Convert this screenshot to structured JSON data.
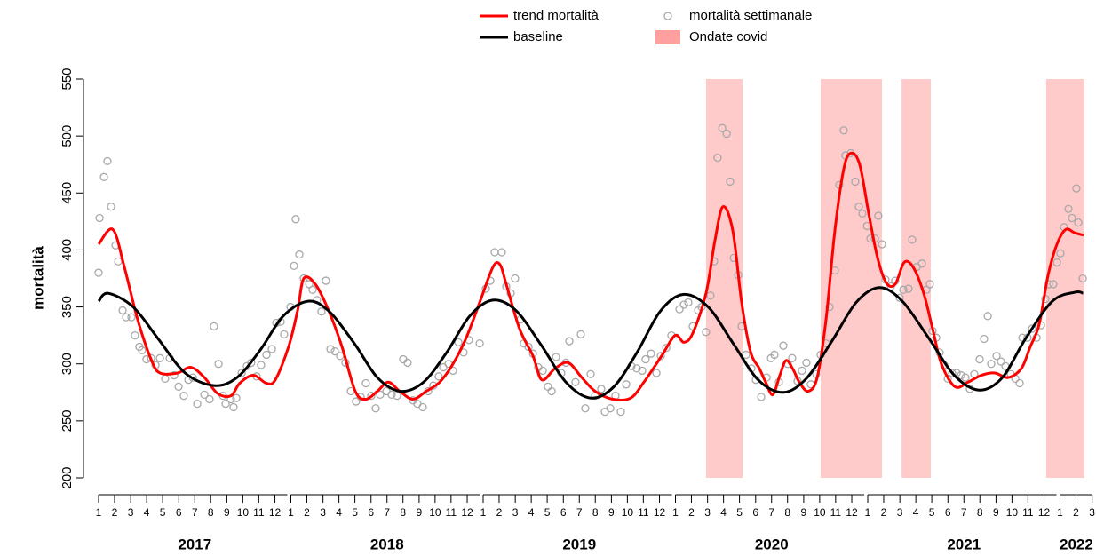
{
  "chart_data": {
    "type": "line",
    "y_label": "mortalità",
    "xlim": [
      2016.98,
      2022.17
    ],
    "ylim": [
      200,
      550
    ],
    "yticks": [
      200,
      250,
      300,
      350,
      400,
      450,
      500,
      550
    ],
    "xticks": [
      {
        "value": 2017.0,
        "label": "1"
      },
      {
        "value": 2017.083,
        "label": "2"
      },
      {
        "value": 2017.167,
        "label": "3"
      },
      {
        "value": 2017.25,
        "label": "4"
      },
      {
        "value": 2017.333,
        "label": "5"
      },
      {
        "value": 2017.417,
        "label": "6"
      },
      {
        "value": 2017.5,
        "label": "7"
      },
      {
        "value": 2017.583,
        "label": "8"
      },
      {
        "value": 2017.667,
        "label": "9"
      },
      {
        "value": 2017.75,
        "label": "10"
      },
      {
        "value": 2017.833,
        "label": "11"
      },
      {
        "value": 2017.917,
        "label": "12"
      },
      {
        "value": 2018.0,
        "label": "1"
      },
      {
        "value": 2018.083,
        "label": "2"
      },
      {
        "value": 2018.167,
        "label": "3"
      },
      {
        "value": 2018.25,
        "label": "4"
      },
      {
        "value": 2018.333,
        "label": "5"
      },
      {
        "value": 2018.417,
        "label": "6"
      },
      {
        "value": 2018.5,
        "label": "7"
      },
      {
        "value": 2018.583,
        "label": "8"
      },
      {
        "value": 2018.667,
        "label": "9"
      },
      {
        "value": 2018.75,
        "label": "10"
      },
      {
        "value": 2018.833,
        "label": "11"
      },
      {
        "value": 2018.917,
        "label": "12"
      },
      {
        "value": 2019.0,
        "label": "1"
      },
      {
        "value": 2019.083,
        "label": "2"
      },
      {
        "value": 2019.167,
        "label": "3"
      },
      {
        "value": 2019.25,
        "label": "4"
      },
      {
        "value": 2019.333,
        "label": "5"
      },
      {
        "value": 2019.417,
        "label": "6"
      },
      {
        "value": 2019.5,
        "label": "7"
      },
      {
        "value": 2019.583,
        "label": "8"
      },
      {
        "value": 2019.667,
        "label": "9"
      },
      {
        "value": 2019.75,
        "label": "10"
      },
      {
        "value": 2019.833,
        "label": "11"
      },
      {
        "value": 2019.917,
        "label": "12"
      },
      {
        "value": 2020.0,
        "label": "1"
      },
      {
        "value": 2020.083,
        "label": "2"
      },
      {
        "value": 2020.167,
        "label": "3"
      },
      {
        "value": 2020.25,
        "label": "4"
      },
      {
        "value": 2020.333,
        "label": "5"
      },
      {
        "value": 2020.417,
        "label": "6"
      },
      {
        "value": 2020.5,
        "label": "7"
      },
      {
        "value": 2020.583,
        "label": "8"
      },
      {
        "value": 2020.667,
        "label": "9"
      },
      {
        "value": 2020.75,
        "label": "10"
      },
      {
        "value": 2020.833,
        "label": "11"
      },
      {
        "value": 2020.917,
        "label": "12"
      },
      {
        "value": 2021.0,
        "label": "1"
      },
      {
        "value": 2021.083,
        "label": "2"
      },
      {
        "value": 2021.167,
        "label": "3"
      },
      {
        "value": 2021.25,
        "label": "4"
      },
      {
        "value": 2021.333,
        "label": "5"
      },
      {
        "value": 2021.417,
        "label": "6"
      },
      {
        "value": 2021.5,
        "label": "7"
      },
      {
        "value": 2021.583,
        "label": "8"
      },
      {
        "value": 2021.667,
        "label": "9"
      },
      {
        "value": 2021.75,
        "label": "10"
      },
      {
        "value": 2021.833,
        "label": "11"
      },
      {
        "value": 2021.917,
        "label": "12"
      },
      {
        "value": 2022.0,
        "label": "1"
      },
      {
        "value": 2022.083,
        "label": "2"
      },
      {
        "value": 2022.167,
        "label": "3"
      }
    ],
    "year_labels": [
      2017,
      2018,
      2019,
      2020,
      2021,
      2022
    ],
    "covid_waves": {
      "name": "Ondate covid",
      "color": "#ff9f9f",
      "ranges": [
        [
          2020.159,
          2020.349
        ],
        [
          2020.755,
          2021.074
        ],
        [
          2021.176,
          2021.328
        ],
        [
          2021.928,
          2022.127
        ]
      ]
    },
    "series": [
      {
        "name": "trend mortalità",
        "type": "line",
        "color": "#ff0000",
        "x": [
          2017.0,
          2017.074,
          2017.134,
          2017.203,
          2017.273,
          2017.319,
          2017.411,
          2017.48,
          2017.55,
          2017.619,
          2017.688,
          2017.734,
          2017.804,
          2017.873,
          2017.919,
          2017.988,
          2018.035,
          2018.067,
          2018.127,
          2018.196,
          2018.266,
          2018.335,
          2018.39,
          2018.45,
          2018.506,
          2018.566,
          2018.635,
          2018.704,
          2018.774,
          2018.843,
          2018.912,
          2018.982,
          2019.051,
          2019.088,
          2019.12,
          2019.189,
          2019.259,
          2019.305,
          2019.374,
          2019.443,
          2019.513,
          2019.582,
          2019.674,
          2019.767,
          2019.836,
          2019.928,
          2019.998,
          2020.044,
          2020.09,
          2020.159,
          2020.206,
          2020.247,
          2020.298,
          2020.344,
          2020.39,
          2020.436,
          2020.469,
          2020.506,
          2020.543,
          2020.575,
          2020.612,
          2020.644,
          2020.69,
          2020.737,
          2020.783,
          2020.829,
          2020.875,
          2020.912,
          2020.958,
          2021.005,
          2021.051,
          2021.097,
          2021.143,
          2021.189,
          2021.236,
          2021.291,
          2021.337,
          2021.383,
          2021.453,
          2021.522,
          2021.591,
          2021.661,
          2021.73,
          2021.799,
          2021.845,
          2021.892,
          2021.938,
          2021.984,
          2022.03,
          2022.076,
          2022.122
        ],
        "values": [
          405,
          418,
          385,
          339,
          304,
          292,
          292,
          297,
          288,
          274,
          272,
          283,
          290,
          283,
          286,
          315,
          347,
          375,
          370,
          347,
          315,
          276,
          269,
          276,
          284,
          276,
          269,
          276,
          284,
          300,
          323,
          354,
          385,
          387,
          370,
          331,
          307,
          286,
          296,
          301,
          288,
          276,
          269,
          270,
          284,
          307,
          325,
          319,
          327,
          362,
          409,
          438,
          417,
          354,
          311,
          296,
          284,
          273,
          290,
          303,
          295,
          284,
          276,
          288,
          339,
          417,
          471,
          485,
          475,
          432,
          393,
          371,
          370,
          389,
          385,
          362,
          331,
          300,
          280,
          284,
          290,
          292,
          288,
          296,
          315,
          335,
          378,
          405,
          418,
          415,
          413
        ]
      },
      {
        "name": "baseline",
        "type": "line",
        "color": "#000000",
        "x": [
          2017.0,
          2017.05,
          2017.18,
          2017.31,
          2017.45,
          2017.6,
          2017.72,
          2017.84,
          2017.96,
          2018.09,
          2018.2,
          2018.33,
          2018.45,
          2018.57,
          2018.69,
          2018.81,
          2018.93,
          2019.05,
          2019.17,
          2019.3,
          2019.43,
          2019.56,
          2019.68,
          2019.8,
          2019.92,
          2020.04,
          2020.17,
          2020.3,
          2020.43,
          2020.56,
          2020.68,
          2020.81,
          2020.94,
          2021.06,
          2021.18,
          2021.32,
          2021.45,
          2021.58,
          2021.7,
          2021.82,
          2021.96,
          2022.08,
          2022.12
        ],
        "values": [
          355,
          362,
          350,
          322,
          292,
          281,
          288,
          312,
          342,
          355,
          346,
          318,
          288,
          276,
          284,
          310,
          342,
          356,
          347,
          317,
          284,
          270,
          280,
          310,
          346,
          361,
          350,
          318,
          286,
          275,
          287,
          319,
          354,
          367,
          355,
          322,
          290,
          277,
          288,
          322,
          355,
          363,
          362
        ]
      },
      {
        "name": "mortalità settimanale",
        "type": "scatter",
        "color": "#a8a8a8",
        "x": [
          2017.0,
          2017.005,
          2017.028,
          2017.046,
          2017.065,
          2017.088,
          2017.102,
          2017.125,
          2017.143,
          2017.171,
          2017.189,
          2017.212,
          2017.226,
          2017.249,
          2017.273,
          2017.296,
          2017.319,
          2017.346,
          2017.37,
          2017.393,
          2017.416,
          2017.443,
          2017.467,
          2017.49,
          2017.513,
          2017.55,
          2017.577,
          2017.6,
          2017.624,
          2017.647,
          2017.661,
          2017.688,
          2017.702,
          2017.716,
          2017.744,
          2017.771,
          2017.794,
          2017.822,
          2017.845,
          2017.873,
          2017.901,
          2017.924,
          2017.947,
          2017.965,
          2017.998,
          2018.016,
          2018.025,
          2018.044,
          2018.067,
          2018.095,
          2018.113,
          2018.136,
          2018.159,
          2018.182,
          2018.206,
          2018.229,
          2018.256,
          2018.284,
          2018.312,
          2018.339,
          2018.363,
          2018.39,
          2018.418,
          2018.441,
          2018.464,
          2018.497,
          2018.524,
          2018.552,
          2018.584,
          2018.607,
          2018.635,
          2018.658,
          2018.686,
          2018.714,
          2018.741,
          2018.769,
          2018.792,
          2018.82,
          2018.843,
          2018.871,
          2018.898,
          2018.926,
          2018.982,
          2019.014,
          2019.037,
          2019.06,
          2019.097,
          2019.12,
          2019.143,
          2019.166,
          2019.194,
          2019.212,
          2019.236,
          2019.259,
          2019.286,
          2019.31,
          2019.337,
          2019.356,
          2019.379,
          2019.406,
          2019.43,
          2019.448,
          2019.48,
          2019.508,
          2019.531,
          2019.559,
          2019.582,
          2019.614,
          2019.633,
          2019.661,
          2019.688,
          2019.716,
          2019.744,
          2019.771,
          2019.799,
          2019.827,
          2019.845,
          2019.873,
          2019.901,
          2019.924,
          2019.952,
          2019.979,
          2020.021,
          2020.044,
          2020.067,
          2020.09,
          2020.118,
          2020.136,
          2020.159,
          2020.182,
          2020.201,
          2020.219,
          2020.243,
          2020.266,
          2020.284,
          2020.303,
          2020.326,
          2020.344,
          2020.367,
          2020.395,
          2020.418,
          2020.446,
          2020.474,
          2020.497,
          2020.515,
          2020.538,
          2020.561,
          2020.584,
          2020.607,
          2020.635,
          2020.658,
          2020.681,
          2020.704,
          2020.732,
          2020.755,
          2020.783,
          2020.801,
          2020.829,
          2020.852,
          2020.875,
          2020.884,
          2020.912,
          2020.935,
          2020.954,
          2020.972,
          2020.996,
          2021.014,
          2021.037,
          2021.055,
          2021.074,
          2021.092,
          2021.12,
          2021.143,
          2021.166,
          2021.185,
          2021.212,
          2021.231,
          2021.254,
          2021.282,
          2021.305,
          2021.323,
          2021.337,
          2021.356,
          2021.374,
          2021.397,
          2021.416,
          2021.439,
          2021.462,
          2021.485,
          2021.508,
          2021.531,
          2021.554,
          2021.582,
          2021.605,
          2021.624,
          2021.642,
          2021.67,
          2021.693,
          2021.716,
          2021.744,
          2021.767,
          2021.79,
          2021.804,
          2021.831,
          2021.855,
          2021.878,
          2021.901,
          2021.924,
          2021.942,
          2021.965,
          2021.984,
          2022.002,
          2022.021,
          2022.044,
          2022.062,
          2022.085,
          2022.095,
          2022.118
        ],
        "values": [
          380,
          428,
          464,
          478,
          438,
          404,
          390,
          347,
          341,
          341,
          325,
          315,
          312,
          304,
          305,
          299,
          305,
          287,
          305,
          290,
          280,
          272,
          286,
          288,
          265,
          273,
          269,
          333,
          300,
          272,
          265,
          269,
          262,
          270,
          292,
          298,
          301,
          289,
          299,
          308,
          313,
          336,
          337,
          326,
          350,
          386,
          427,
          396,
          375,
          370,
          365,
          356,
          346,
          373,
          313,
          311,
          307,
          301,
          276,
          267,
          271,
          283,
          272,
          261,
          273,
          276,
          273,
          272,
          304,
          301,
          268,
          265,
          262,
          276,
          281,
          289,
          297,
          300,
          294,
          319,
          310,
          321,
          318,
          366,
          373,
          398,
          398,
          368,
          362,
          375,
          339,
          318,
          315,
          309,
          297,
          294,
          280,
          276,
          306,
          292,
          301,
          320,
          284,
          326,
          261,
          291,
          272,
          278,
          258,
          261,
          272,
          258,
          282,
          298,
          296,
          294,
          304,
          309,
          292,
          307,
          314,
          325,
          348,
          352,
          354,
          333,
          347,
          350,
          328,
          360,
          390,
          481,
          507,
          502,
          460,
          393,
          378,
          333,
          308,
          296,
          286,
          271,
          288,
          305,
          308,
          284,
          316,
          300,
          305,
          285,
          294,
          301,
          282,
          291,
          308,
          318,
          350,
          382,
          457,
          505,
          483,
          485,
          460,
          438,
          432,
          421,
          410,
          410,
          430,
          405,
          374,
          368,
          373,
          358,
          365,
          366,
          409,
          385,
          388,
          365,
          370,
          329,
          323,
          310,
          299,
          287,
          292,
          292,
          290,
          288,
          278,
          291,
          304,
          322,
          342,
          300,
          307,
          302,
          298,
          291,
          287,
          283,
          323,
          323,
          331,
          323,
          334,
          357,
          370,
          370,
          389,
          397,
          420,
          436,
          428,
          454,
          424,
          375
        ]
      }
    ]
  }
}
